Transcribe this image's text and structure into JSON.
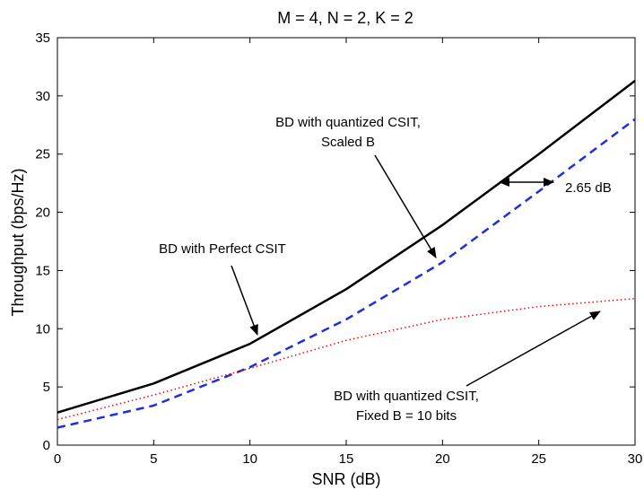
{
  "chart_data": {
    "type": "line",
    "title": "M = 4, N = 2, K = 2",
    "xlabel": "SNR (dB)",
    "ylabel": "Throughput (bps/Hz)",
    "xlim": [
      0,
      30
    ],
    "ylim": [
      0,
      35
    ],
    "xticks": [
      "0",
      "5",
      "10",
      "15",
      "20",
      "25",
      "30"
    ],
    "yticks": [
      "0",
      "5",
      "10",
      "15",
      "20",
      "25",
      "30",
      "35"
    ],
    "grid": false,
    "legend": "none",
    "x": [
      0,
      5,
      10,
      15,
      20,
      25,
      30
    ],
    "series": [
      {
        "name": "BD with Perfect CSIT",
        "values": [
          2.8,
          5.3,
          8.7,
          13.4,
          18.9,
          25.0,
          31.3
        ],
        "color": "#000000",
        "style": "solid"
      },
      {
        "name": "BD with quantized CSIT, Scaled B",
        "values": [
          1.5,
          3.4,
          6.7,
          10.8,
          15.7,
          21.8,
          28.0
        ],
        "color": "#1f2fdc",
        "style": "dashed"
      },
      {
        "name": "BD with quantized CSIT, Fixed B = 10 bits",
        "values": [
          2.2,
          4.3,
          6.6,
          9.0,
          10.8,
          11.9,
          12.6
        ],
        "color": "#ff0000",
        "style": "dotted"
      }
    ],
    "annotations": [
      {
        "lines": [
          "BD with Perfect CSIT"
        ],
        "arrow_to": [
          10.6,
          9.4
        ]
      },
      {
        "lines": [
          "BD with quantized CSIT,",
          "Scaled B"
        ],
        "arrow_to": [
          19.6,
          16.0
        ]
      },
      {
        "lines": [
          "2.65 dB"
        ],
        "double_arrow": [
          [
            23.0,
            22.7
          ],
          [
            25.8,
            22.7
          ]
        ]
      },
      {
        "lines": [
          "BD with quantized CSIT,",
          "Fixed B = 10 bits"
        ],
        "arrow_to": [
          28.2,
          11.9
        ]
      }
    ]
  }
}
